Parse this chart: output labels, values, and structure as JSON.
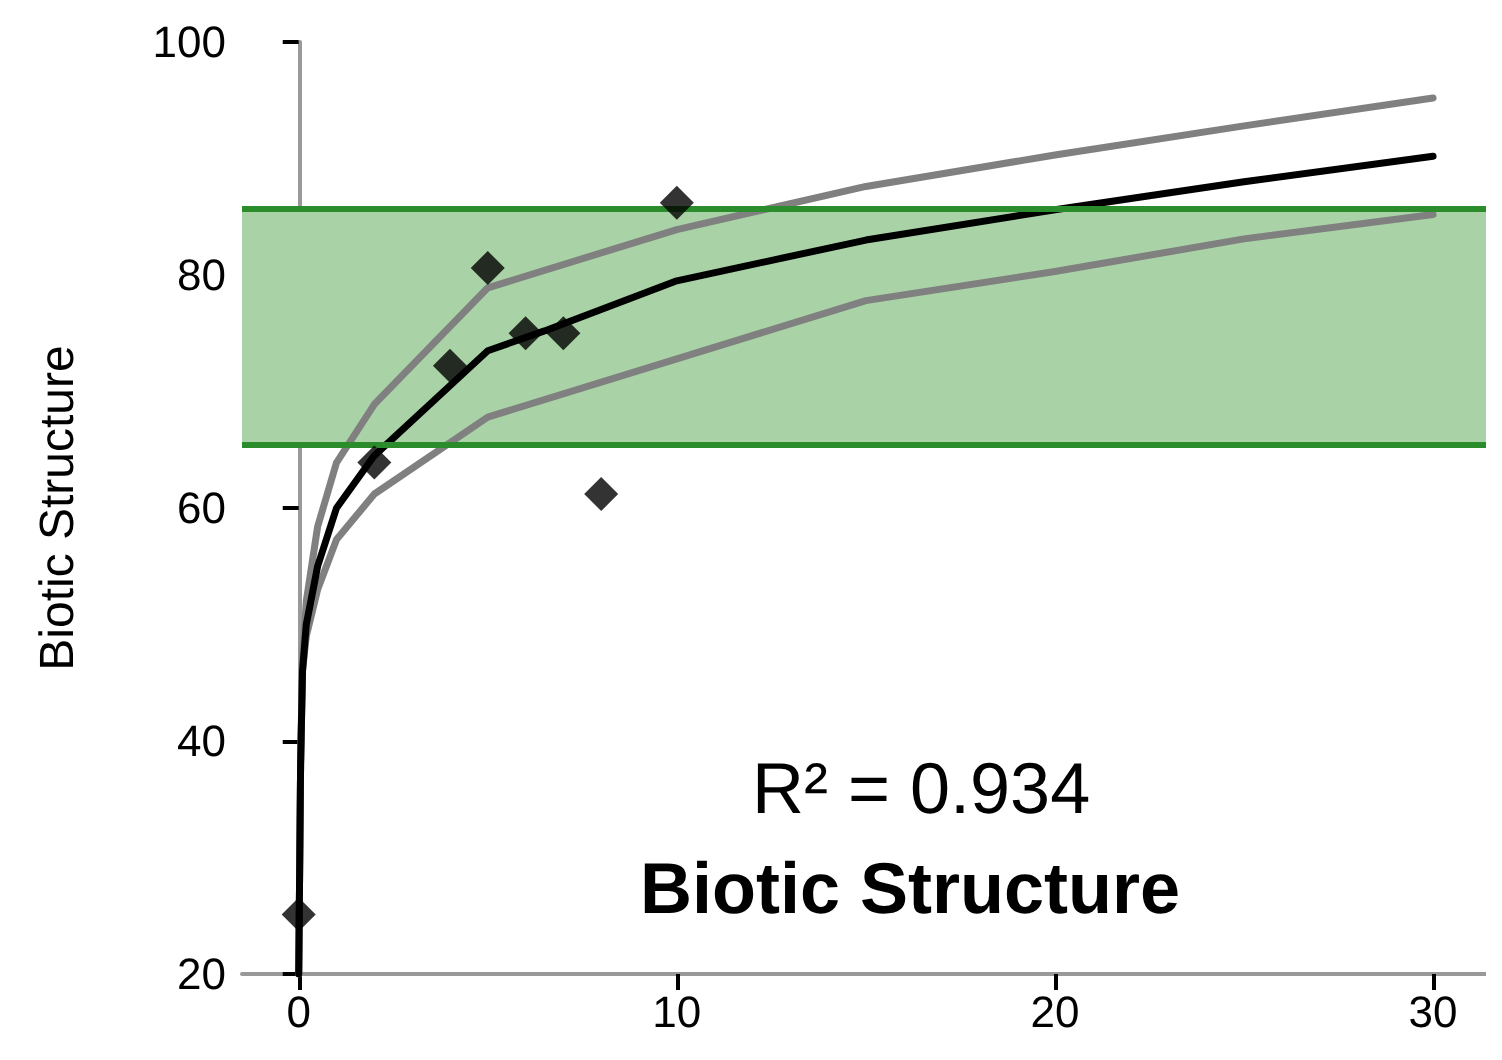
{
  "chart_data": {
    "type": "scatter",
    "ylabel": "Biotic Structure",
    "xlim": [
      -1.5,
      31.4
    ],
    "ylim": [
      20,
      100
    ],
    "xticks": [
      0,
      10,
      20,
      30
    ],
    "yticks": [
      20,
      40,
      60,
      80,
      100
    ],
    "grid": false,
    "annotations": [
      "R² = 0.934",
      "Biotic Structure"
    ],
    "bands": [
      {
        "axis": "y",
        "from": 65.4,
        "to": 85.7,
        "color": "#a9d3a6"
      }
    ],
    "ref_lines": [
      {
        "axis": "y",
        "value": 65.4,
        "color": "#2a8c2a"
      },
      {
        "axis": "y",
        "value": 85.7,
        "color": "#2a8c2a"
      }
    ],
    "series": [
      {
        "type": "line",
        "color": "#808080",
        "marker": "none",
        "x": [
          0,
          0.05,
          0.1,
          0.2,
          0.5,
          1,
          2,
          5,
          10,
          15,
          20,
          25,
          30
        ],
        "values": [
          20,
          38,
          47,
          52,
          58.4,
          63.9,
          68.9,
          78.9,
          83.9,
          87.6,
          90.3,
          92.8,
          95.2
        ]
      },
      {
        "type": "line",
        "color": "#808080",
        "marker": "none",
        "x": [
          0,
          0.05,
          0.1,
          0.2,
          0.5,
          1,
          2,
          5,
          10,
          15,
          20,
          25,
          30
        ],
        "values": [
          20,
          38,
          46,
          49,
          53,
          57.3,
          61.2,
          67.8,
          72.8,
          77.8,
          80.3,
          83.1,
          85.2
        ]
      },
      {
        "type": "line",
        "color": "#000000",
        "marker": "none",
        "x": [
          0,
          0.05,
          0.1,
          0.2,
          0.5,
          1,
          2,
          5,
          6.5,
          10,
          15,
          20,
          25,
          30
        ],
        "values": [
          20,
          38,
          46,
          50,
          55,
          60,
          64.5,
          73.5,
          75.2,
          79.5,
          83,
          85.6,
          88,
          90.2
        ]
      },
      {
        "color": "#000000",
        "marker": "diamond",
        "x": [
          0,
          2,
          4,
          5,
          6,
          7,
          8,
          10
        ],
        "values": [
          25.1,
          63.9,
          72.2,
          80.6,
          75,
          75,
          61.2,
          86.2
        ]
      }
    ]
  }
}
